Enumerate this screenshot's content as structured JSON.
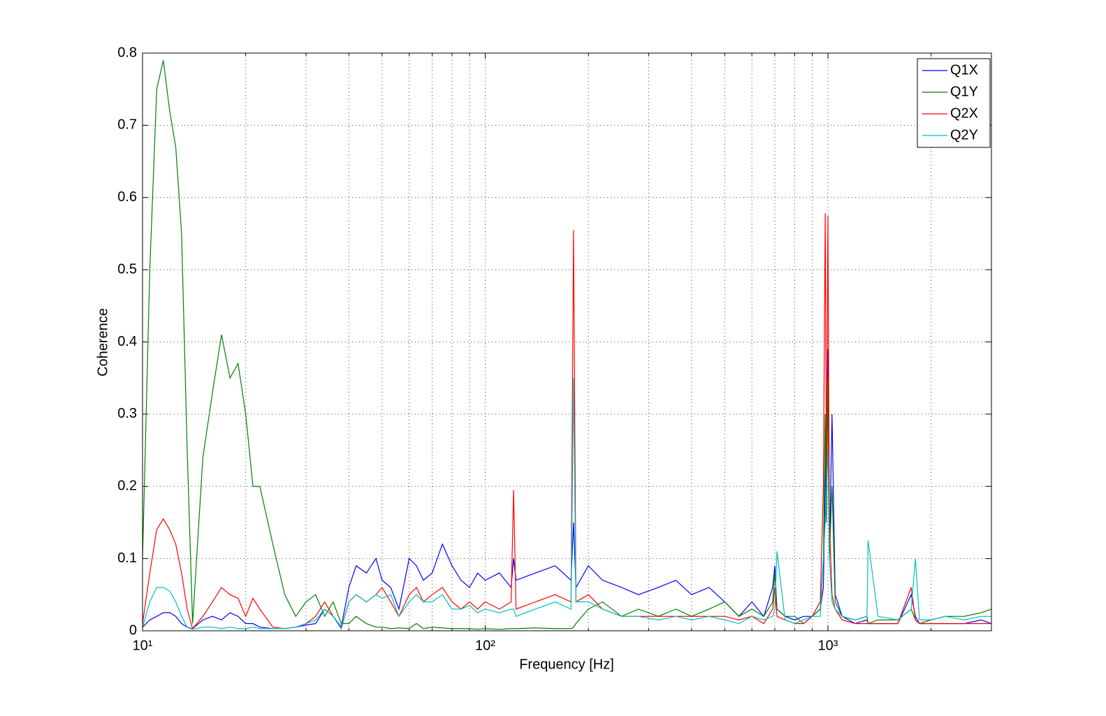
{
  "chart_data": {
    "type": "line",
    "x_label": "Frequency [Hz]",
    "y_label": "Coherence",
    "x_log": true,
    "grid": true,
    "legend_position": "upper-right",
    "xlim": [
      10,
      3000
    ],
    "ylim": [
      0,
      0.8
    ],
    "xticks": [
      {
        "value": 10,
        "label": "10¹"
      },
      {
        "value": 100,
        "label": "10²"
      },
      {
        "value": 1000,
        "label": "10³"
      }
    ],
    "xminorticks": [
      20,
      30,
      40,
      50,
      60,
      70,
      80,
      90,
      200,
      300,
      400,
      500,
      600,
      700,
      800,
      900,
      2000
    ],
    "yticks": [
      0,
      0.1,
      0.2,
      0.3,
      0.4,
      0.5,
      0.6,
      0.7,
      0.8
    ],
    "x": [
      10,
      10.5,
      11,
      11.5,
      12,
      12.5,
      13,
      13.5,
      14,
      15,
      16,
      17,
      18,
      19,
      20,
      21,
      22,
      24,
      26,
      28,
      30,
      32,
      34,
      36,
      38,
      40,
      42,
      45,
      48,
      50,
      53,
      56,
      60,
      63,
      66,
      70,
      75,
      80,
      85,
      90,
      95,
      100,
      110,
      119,
      121,
      123,
      140,
      160,
      178,
      181,
      184,
      200,
      220,
      250,
      280,
      320,
      360,
      400,
      450,
      500,
      550,
      600,
      650,
      690,
      700,
      710,
      750,
      800,
      850,
      900,
      950,
      970,
      982,
      990,
      1000,
      1010,
      1028,
      1050,
      1100,
      1200,
      1300,
      1310,
      1400,
      1600,
      1750,
      1800,
      1850,
      2000,
      2200,
      2500,
      2800,
      3000
    ],
    "series": [
      {
        "name": "Q1X",
        "color": "#0000ff",
        "values": [
          0.005,
          0.015,
          0.02,
          0.025,
          0.025,
          0.02,
          0.01,
          0.005,
          0.003,
          0.015,
          0.02,
          0.015,
          0.025,
          0.02,
          0.01,
          0.01,
          0.005,
          0.003,
          0.003,
          0.005,
          0.008,
          0.01,
          0.03,
          0.02,
          0.005,
          0.06,
          0.09,
          0.08,
          0.1,
          0.07,
          0.06,
          0.03,
          0.1,
          0.09,
          0.07,
          0.08,
          0.12,
          0.09,
          0.07,
          0.06,
          0.08,
          0.07,
          0.08,
          0.06,
          0.1,
          0.07,
          0.08,
          0.09,
          0.07,
          0.15,
          0.06,
          0.09,
          0.07,
          0.06,
          0.05,
          0.06,
          0.07,
          0.05,
          0.06,
          0.04,
          0.02,
          0.04,
          0.02,
          0.06,
          0.09,
          0.03,
          0.02,
          0.015,
          0.02,
          0.02,
          0.03,
          0.06,
          0.2,
          0.3,
          0.39,
          0.1,
          0.3,
          0.05,
          0.02,
          0.01,
          0.015,
          0.01,
          0.01,
          0.01,
          0.05,
          0.02,
          0.01,
          0.01,
          0.01,
          0.01,
          0.015,
          0.01
        ]
      },
      {
        "name": "Q1Y",
        "color": "#008000",
        "values": [
          0.1,
          0.5,
          0.75,
          0.79,
          0.72,
          0.67,
          0.55,
          0.25,
          0.01,
          0.24,
          0.33,
          0.41,
          0.35,
          0.37,
          0.3,
          0.2,
          0.2,
          0.12,
          0.05,
          0.02,
          0.04,
          0.05,
          0.02,
          0.04,
          0.01,
          0.01,
          0.02,
          0.01,
          0.005,
          0.005,
          0.003,
          0.004,
          0.003,
          0.01,
          0.003,
          0.005,
          0.004,
          0.003,
          0.003,
          0.003,
          0.002,
          0.003,
          0.002,
          0.003,
          0.003,
          0.003,
          0.004,
          0.003,
          0.003,
          0.005,
          0.01,
          0.03,
          0.04,
          0.02,
          0.03,
          0.02,
          0.03,
          0.02,
          0.03,
          0.04,
          0.02,
          0.03,
          0.02,
          0.04,
          0.08,
          0.03,
          0.02,
          0.02,
          0.01,
          0.02,
          0.03,
          0.1,
          0.3,
          0.15,
          0.35,
          0.1,
          0.2,
          0.04,
          0.02,
          0.015,
          0.02,
          0.01,
          0.015,
          0.015,
          0.03,
          0.015,
          0.01,
          0.015,
          0.02,
          0.02,
          0.025,
          0.03
        ]
      },
      {
        "name": "Q2X",
        "color": "#ff0000",
        "values": [
          0.01,
          0.08,
          0.14,
          0.155,
          0.14,
          0.12,
          0.08,
          0.03,
          0.003,
          0.02,
          0.04,
          0.06,
          0.05,
          0.045,
          0.02,
          0.045,
          0.03,
          0.005,
          0.003,
          0.005,
          0.01,
          0.02,
          0.04,
          0.02,
          0.003,
          0.04,
          0.05,
          0.04,
          0.05,
          0.06,
          0.04,
          0.02,
          0.05,
          0.06,
          0.04,
          0.05,
          0.06,
          0.04,
          0.03,
          0.04,
          0.03,
          0.04,
          0.03,
          0.04,
          0.195,
          0.03,
          0.04,
          0.05,
          0.04,
          0.555,
          0.04,
          0.05,
          0.03,
          0.02,
          0.02,
          0.02,
          0.02,
          0.02,
          0.02,
          0.02,
          0.015,
          0.02,
          0.01,
          0.03,
          0.06,
          0.02,
          0.015,
          0.01,
          0.01,
          0.02,
          0.04,
          0.2,
          0.578,
          0.2,
          0.575,
          0.15,
          0.05,
          0.03,
          0.015,
          0.01,
          0.01,
          0.01,
          0.01,
          0.01,
          0.06,
          0.015,
          0.01,
          0.01,
          0.01,
          0.01,
          0.01,
          0.01
        ]
      },
      {
        "name": "Q2Y",
        "color": "#00bfbf",
        "values": [
          0.005,
          0.04,
          0.06,
          0.06,
          0.055,
          0.04,
          0.02,
          0.005,
          0.002,
          0.005,
          0.005,
          0.003,
          0.005,
          0.003,
          0.003,
          0.005,
          0.003,
          0.003,
          0.003,
          0.005,
          0.01,
          0.015,
          0.03,
          0.02,
          0.003,
          0.04,
          0.05,
          0.04,
          0.05,
          0.045,
          0.05,
          0.02,
          0.04,
          0.05,
          0.04,
          0.04,
          0.05,
          0.03,
          0.03,
          0.035,
          0.025,
          0.03,
          0.025,
          0.03,
          0.03,
          0.02,
          0.03,
          0.04,
          0.03,
          0.35,
          0.04,
          0.04,
          0.03,
          0.02,
          0.02,
          0.015,
          0.02,
          0.015,
          0.02,
          0.015,
          0.01,
          0.02,
          0.015,
          0.02,
          0.03,
          0.11,
          0.015,
          0.01,
          0.015,
          0.02,
          0.02,
          0.1,
          0.15,
          0.2,
          0.25,
          0.1,
          0.04,
          0.03,
          0.02,
          0.015,
          0.02,
          0.125,
          0.02,
          0.015,
          0.03,
          0.1,
          0.015,
          0.015,
          0.02,
          0.015,
          0.02,
          0.02
        ]
      }
    ]
  }
}
